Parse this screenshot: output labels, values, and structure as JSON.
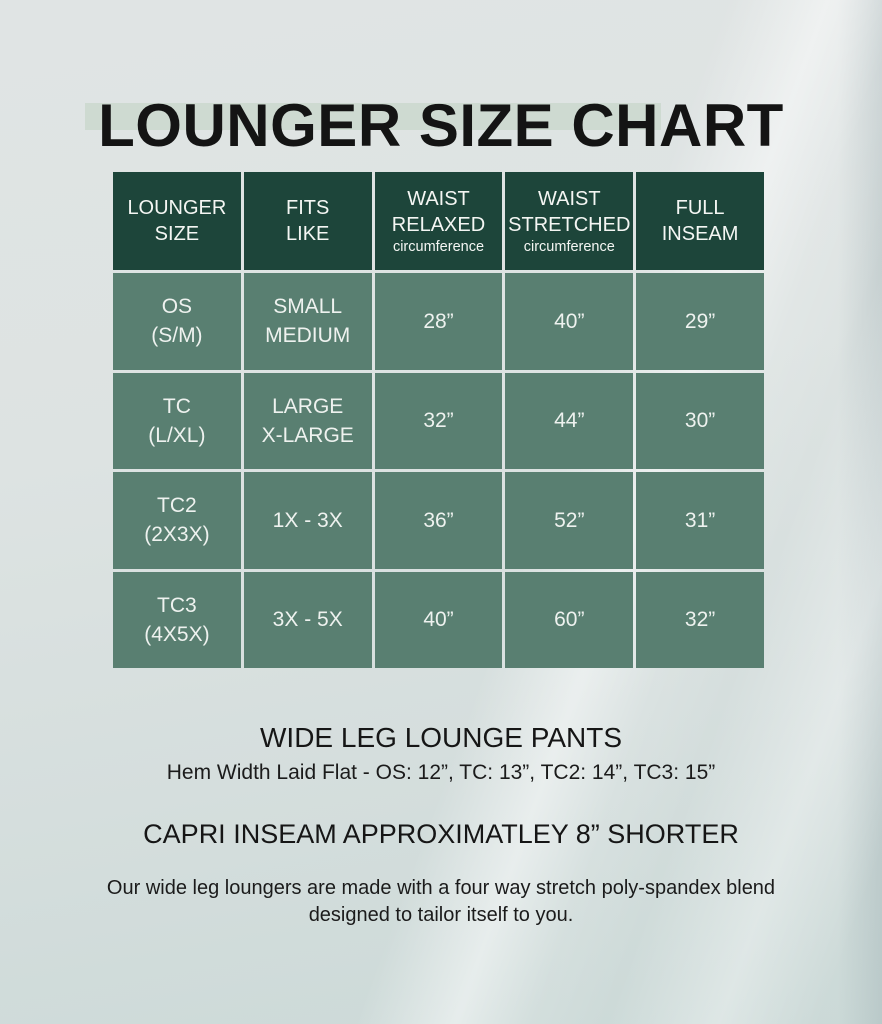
{
  "title": {
    "text": "LOUNGER SIZE CHART"
  },
  "size_table": {
    "header": [
      {
        "lines": [
          "LOUNGER",
          "SIZE"
        ],
        "sub": ""
      },
      {
        "lines": [
          "FITS",
          "LIKE"
        ],
        "sub": ""
      },
      {
        "lines": [
          "WAIST",
          "RELAXED"
        ],
        "sub": "circumference"
      },
      {
        "lines": [
          "WAIST",
          "STRETCHED"
        ],
        "sub": "circumference"
      },
      {
        "lines": [
          "FULL",
          "INSEAM"
        ],
        "sub": ""
      }
    ],
    "rows": [
      [
        [
          "OS",
          "(S/M)"
        ],
        [
          "SMALL",
          "MEDIUM"
        ],
        [
          "28”"
        ],
        [
          "40”"
        ],
        [
          "29”"
        ]
      ],
      [
        [
          "TC",
          "(L/XL)"
        ],
        [
          "LARGE",
          "X-LARGE"
        ],
        [
          "32”"
        ],
        [
          "44”"
        ],
        [
          "30”"
        ]
      ],
      [
        [
          "TC2",
          "(2X3X)"
        ],
        [
          "1X - 3X"
        ],
        [
          "36”"
        ],
        [
          "52”"
        ],
        [
          "31”"
        ]
      ],
      [
        [
          "TC3",
          "(4X5X)"
        ],
        [
          "3X - 5X"
        ],
        [
          "40”"
        ],
        [
          "60”"
        ],
        [
          "32”"
        ]
      ]
    ]
  },
  "footer": {
    "product_heading": "WIDE LEG LOUNGE PANTS",
    "hem_note": "Hem Width Laid Flat - OS: 12”, TC: 13”, TC2: 14”, TC3: 15”",
    "capri_note": "CAPRI INSEAM APPROXIMATLEY 8” SHORTER",
    "fabric_note_line1": "Our wide leg loungers are made with a four way stretch poly-spandex blend",
    "fabric_note_line2": "designed to tailor itself to you."
  },
  "colors": {
    "header_green": "#1d453a",
    "cell_green": "#597f71",
    "title_highlight": "#cbd8ce",
    "background": "#dce2e1",
    "cell_text": "#eef2ef",
    "heading_text": "#161616"
  }
}
